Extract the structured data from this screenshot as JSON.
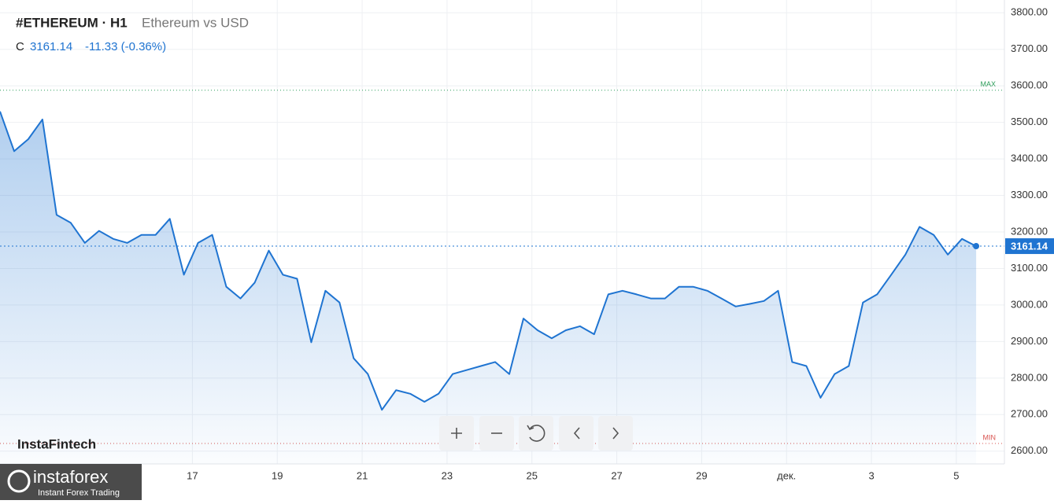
{
  "chart_data": {
    "type": "area",
    "title": "#ETHEREUM · H1",
    "subtitle": "Ethereum vs USD",
    "close_label": "C",
    "last_price": 3161.14,
    "change": "-11.33 (-0.36%)",
    "watermark": "InstaFintech",
    "brand": "instaforex",
    "brand_tagline": "Instant Forex Trading",
    "max_label": "MAX",
    "min_label": "MIN",
    "max_level": 3588,
    "min_level": 2621,
    "color": "#1f74d1",
    "grid": true,
    "values": [
      3530,
      3421,
      3454,
      3508,
      3247,
      3225,
      3170,
      3203,
      3181,
      3170,
      3192,
      3192,
      3236,
      3083,
      3170,
      3192,
      3050,
      3018,
      3061,
      3149,
      3083,
      3072,
      2898,
      3039,
      3007,
      2854,
      2811,
      2713,
      2767,
      2757,
      2735,
      2757,
      2811,
      2822,
      2833,
      2844,
      2811,
      2963,
      2931,
      2909,
      2931,
      2942,
      2920,
      3029,
      3039,
      3029,
      3018,
      3018,
      3050,
      3050,
      3039,
      3018,
      2996,
      3003,
      3011,
      3039,
      2844,
      2833,
      2746,
      2811,
      2833,
      3007,
      3029,
      3083,
      3138,
      3214,
      3192,
      3138,
      3181,
      3161.14
    ],
    "xlim": [
      0,
      71
    ],
    "xticks": [
      {
        "value": 13.6,
        "label": "17"
      },
      {
        "value": 19.6,
        "label": "19"
      },
      {
        "value": 25.6,
        "label": "21"
      },
      {
        "value": 31.6,
        "label": "23"
      },
      {
        "value": 37.6,
        "label": "25"
      },
      {
        "value": 43.6,
        "label": "27"
      },
      {
        "value": 49.6,
        "label": "29"
      },
      {
        "value": 55.6,
        "label": "дек."
      },
      {
        "value": 61.6,
        "label": "3"
      },
      {
        "value": 67.6,
        "label": "5"
      }
    ],
    "ylim": [
      2565,
      3835
    ],
    "yticks": [
      {
        "value": 2600,
        "label": "2600.00"
      },
      {
        "value": 2700,
        "label": "2700.00"
      },
      {
        "value": 2800,
        "label": "2800.00"
      },
      {
        "value": 2900,
        "label": "2900.00"
      },
      {
        "value": 3000,
        "label": "3000.00"
      },
      {
        "value": 3100,
        "label": "3100.00"
      },
      {
        "value": 3200,
        "label": "3200.00"
      },
      {
        "value": 3300,
        "label": "3300.00"
      },
      {
        "value": 3400,
        "label": "3400.00"
      },
      {
        "value": 3500,
        "label": "3500.00"
      },
      {
        "value": 3600,
        "label": "3600.00"
      },
      {
        "value": 3700,
        "label": "3700.00"
      },
      {
        "value": 3800,
        "label": "3800.00"
      }
    ]
  }
}
